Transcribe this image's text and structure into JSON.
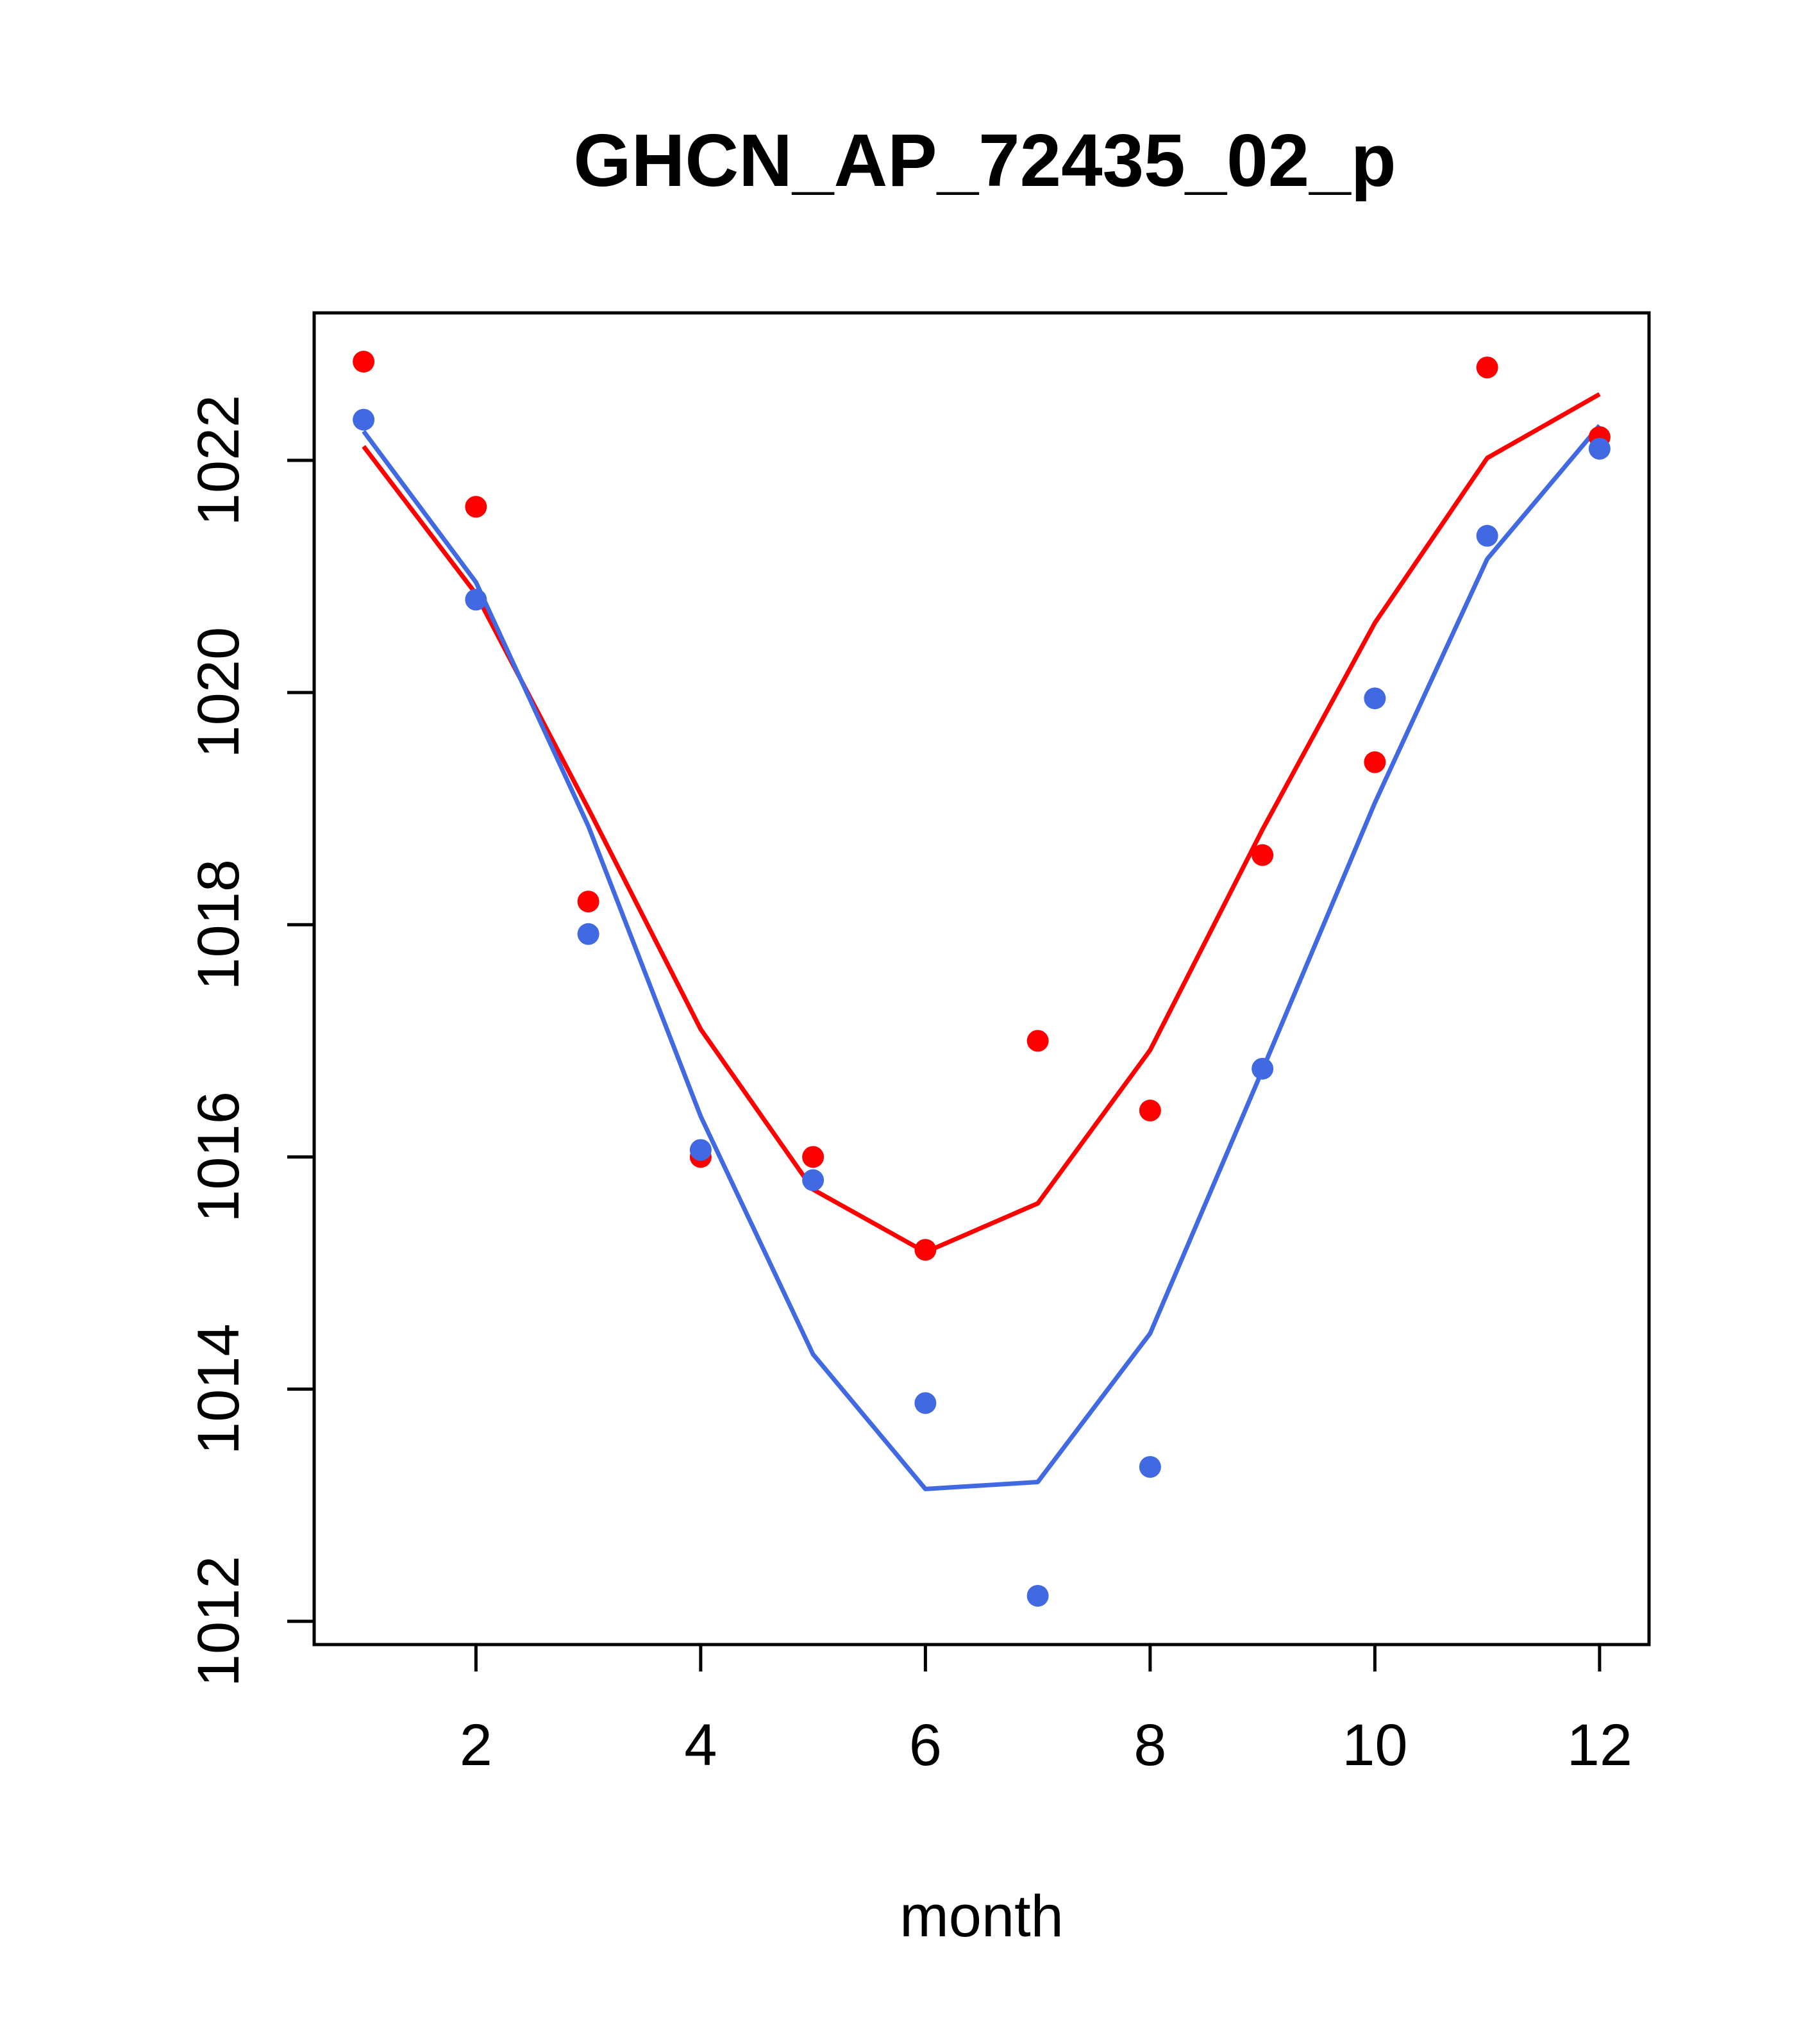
{
  "chart_data": {
    "type": "line",
    "title": "GHCN_AP_72435_02_p",
    "xlabel": "month",
    "ylabel": "",
    "xlim": [
      0.56,
      12.44
    ],
    "ylim": [
      1011.8,
      1023.27
    ],
    "x_ticks": [
      2,
      4,
      6,
      8,
      10,
      12
    ],
    "y_ticks": [
      1012,
      1014,
      1016,
      1018,
      1020,
      1022
    ],
    "grid": false,
    "legend": "none",
    "x": [
      1,
      2,
      3,
      4,
      5,
      6,
      7,
      8,
      9,
      10,
      11,
      12
    ],
    "series": [
      {
        "color": "#ff0000",
        "points": [
          1022.85,
          1021.6,
          1018.2,
          1016.0,
          1016.0,
          1015.2,
          1017.0,
          1016.4,
          1018.6,
          1019.4,
          1022.8,
          1022.2
        ],
        "line": [
          1022.12,
          1020.85,
          1019.0,
          1017.1,
          1015.72,
          1015.18,
          1015.6,
          1016.92,
          1018.82,
          1020.6,
          1022.02,
          1022.57
        ]
      },
      {
        "color": "#4169e1",
        "points": [
          1022.35,
          1020.8,
          1017.92,
          1016.06,
          1015.8,
          1013.88,
          1012.22,
          1013.33,
          1016.76,
          1019.95,
          1021.35,
          1022.1
        ],
        "line": [
          1022.25,
          1020.95,
          1018.85,
          1016.35,
          1014.3,
          1013.14,
          1013.2,
          1014.48,
          1016.75,
          1019.05,
          1021.15,
          1022.3
        ]
      }
    ]
  }
}
